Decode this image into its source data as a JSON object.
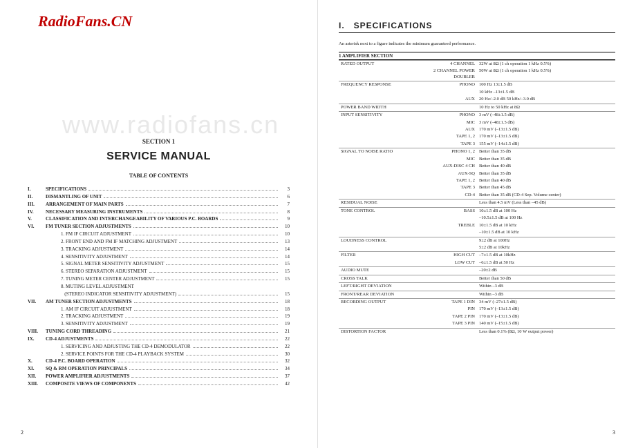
{
  "logo": "RadioFans.CN",
  "watermark": "www.radiofans.cn",
  "left": {
    "section_label": "SECTION 1",
    "title": "SERVICE MANUAL",
    "toc_title": "TABLE OF CONTENTS",
    "page_number": "2",
    "toc": [
      {
        "n": "I.",
        "t": "SPECIFICATIONS",
        "p": "3",
        "major": true
      },
      {
        "n": "II.",
        "t": "DISMANTLING OF UNIT",
        "p": "6",
        "major": true
      },
      {
        "n": "III.",
        "t": "ARRANGEMENT OF MAIN PARTS",
        "p": "7",
        "major": true
      },
      {
        "n": "IV.",
        "t": "NECESSARY MEASURING INSTRUMENTS",
        "p": "8",
        "major": true
      },
      {
        "n": "V.",
        "t": "CLASSIFICATION AND INTERCHANGEABILITY OF VARIOUS P.C. BOARDS",
        "p": "9",
        "major": true
      },
      {
        "n": "VI.",
        "t": "FM TUNER SECTION ADJUSTMENTS",
        "p": "10",
        "major": true
      },
      {
        "n": "",
        "t": "1. FM IF CIRCUIT ADJUSTMENT",
        "p": "10",
        "sub": true
      },
      {
        "n": "",
        "t": "2. FRONT END AND FM IF MATCHING ADJUSTMENT",
        "p": "13",
        "sub": true
      },
      {
        "n": "",
        "t": "3. TRACKING ADJUSTMENT",
        "p": "14",
        "sub": true
      },
      {
        "n": "",
        "t": "4. SENSITIVITY ADJUSTMENT",
        "p": "14",
        "sub": true
      },
      {
        "n": "",
        "t": "5. SIGNAL METER SENSITIVITY ADJUSTMENT",
        "p": "15",
        "sub": true
      },
      {
        "n": "",
        "t": "6. STEREO SEPARATION ADJUSTMENT",
        "p": "15",
        "sub": true
      },
      {
        "n": "",
        "t": "7. TUNING METER CENTER ADJUSTMENT",
        "p": "15",
        "sub": true
      },
      {
        "n": "",
        "t": "8. MUTING LEVEL ADJUSTMENT",
        "p": "",
        "sub": true,
        "nodots": true
      },
      {
        "n": "",
        "t": "   (STEREO INDICATOR SENSITIVITY ADJUSTMENT)",
        "p": "15",
        "sub": true
      },
      {
        "n": "VII.",
        "t": "AM TUNER SECTION ADJUSTMENTS",
        "p": "18",
        "major": true
      },
      {
        "n": "",
        "t": "1. AM IF CIRCUIT ADJUSTMENT",
        "p": "18",
        "sub": true
      },
      {
        "n": "",
        "t": "2. TRACKING ADJUSTMENT",
        "p": "19",
        "sub": true
      },
      {
        "n": "",
        "t": "3. SENSITIVITY ADJUSTMENT",
        "p": "19",
        "sub": true
      },
      {
        "n": "VIII.",
        "t": "TUNING CORD THREADING",
        "p": "21",
        "major": true
      },
      {
        "n": "IX.",
        "t": "CD-4 ADJUSTMENTS",
        "p": "22",
        "major": true
      },
      {
        "n": "",
        "t": "1. SERVICING AND ADJUSTING THE CD-4 DEMODULATOR",
        "p": "22",
        "sub": true
      },
      {
        "n": "",
        "t": "2. SERVICE POINTS FOR THE CD-4 PLAYBACK SYSTEM",
        "p": "30",
        "sub": true
      },
      {
        "n": "X.",
        "t": "CD-4 P.C. BOARD OPERATION",
        "p": "32",
        "major": true
      },
      {
        "n": "XI.",
        "t": "SQ & RM OPERATION PRINCIPALS",
        "p": "34",
        "major": true
      },
      {
        "n": "XII.",
        "t": "POWER AMPLIFIER ADJUSTMENTS",
        "p": "37",
        "major": true
      },
      {
        "n": "XIII.",
        "t": "COMPOSITE VIEWS OF COMPONENTS",
        "p": "42",
        "major": true
      }
    ]
  },
  "right": {
    "heading": "I. SPECIFICATIONS",
    "note": "An asterisk next to a figure indicates the minimum guaranteed performance.",
    "section_title": "1 AMPLIFIER SECTION",
    "page_number": "3",
    "rows": [
      {
        "c1": "RATED OUTPUT",
        "c2": "4 CHANNEL",
        "c3": "32W at 8Ω (1 ch operation 1 kHz 0.5%)"
      },
      {
        "c1": "",
        "c2": "2 CHANNEL POWER DOUBLER",
        "c3": "50W at 8Ω (1 ch operation 1 kHz 0.5%)",
        "nb": true
      },
      {
        "c1": "FREQUENCY RESPONSE",
        "c2": "PHONO",
        "c3": "100 Hz 13±1.5 dB"
      },
      {
        "c1": "",
        "c2": "",
        "c3": "10 kHz –13±1.5 dB",
        "nb": true
      },
      {
        "c1": "",
        "c2": "AUX",
        "c3": "20 Hz/–2.0 dB  50 kHz/–3.0 dB",
        "nb": true
      },
      {
        "c1": "POWER BAND WIDTH",
        "c2": "",
        "c3": "10 Hz to 50 kHz at 8Ω"
      },
      {
        "c1": "INPUT SENSITIVITY",
        "c2": "PHONO",
        "c3": "3 mV (–48±1.5 dB)"
      },
      {
        "c1": "",
        "c2": "MIC",
        "c3": "3 mV (–48±1.5 dB)",
        "nb": true
      },
      {
        "c1": "",
        "c2": "AUX",
        "c3": "170 mV (–13±1.5 dB)",
        "nb": true
      },
      {
        "c1": "",
        "c2": "TAPE 1, 2",
        "c3": "170 mV (–13±1.5 dB)",
        "nb": true
      },
      {
        "c1": "",
        "c2": "TAPE 3",
        "c3": "155 mV (–14±1.5 dB)",
        "nb": true
      },
      {
        "c1": "SIGNAL TO NOISE RATIO",
        "c2": "PHONO 1, 2",
        "c3": "Better than 35 dB"
      },
      {
        "c1": "",
        "c2": "MIC",
        "c3": "Better than 35 dB",
        "nb": true
      },
      {
        "c1": "",
        "c2": "AUX-DISC 4 CH",
        "c3": "Better than 40 dB",
        "nb": true
      },
      {
        "c1": "",
        "c2": "AUX-SQ",
        "c3": "Better than 35 dB",
        "nb": true
      },
      {
        "c1": "",
        "c2": "TAPE 1, 2",
        "c3": "Better than 40 dB",
        "nb": true
      },
      {
        "c1": "",
        "c2": "TAPE 3",
        "c3": "Better than 45 dB",
        "nb": true
      },
      {
        "c1": "",
        "c2": "CD-4",
        "c3": "Better than 35 dB (CD-4 Sep. Volume center)",
        "nb": true
      },
      {
        "c1": "RESIDUAL NOISE",
        "c2": "",
        "c3": "Less than 4.5 mV (Less than –45 dB)"
      },
      {
        "c1": "TONE CONTROL",
        "c2": "BASS",
        "c3": "10±1.5 dB at 100 Hz"
      },
      {
        "c1": "",
        "c2": "",
        "c3": "–10.5±1.5 dB at 100 Hz",
        "nb": true
      },
      {
        "c1": "",
        "c2": "TREBLE",
        "c3": "10±1.5 dB at 10 kHz",
        "nb": true
      },
      {
        "c1": "",
        "c2": "",
        "c3": "–10±1.5 dB at 10 kHz",
        "nb": true
      },
      {
        "c1": "LOUDNESS CONTROL",
        "c2": "",
        "c3": "9±2 dB at 100Hz"
      },
      {
        "c1": "",
        "c2": "",
        "c3": "5±2 dB at 10kHz",
        "nb": true
      },
      {
        "c1": "FILTER",
        "c2": "HIGH CUT",
        "c3": "–7±1.5 dB at 10kHz"
      },
      {
        "c1": "",
        "c2": "LOW CUT",
        "c3": "–6±1.5 dB at 50 Hz",
        "nb": true
      },
      {
        "c1": "AUDIO MUTE",
        "c2": "",
        "c3": "–20±2 dB"
      },
      {
        "c1": "CROSS TALK",
        "c2": "",
        "c3": "Better than 50 dB"
      },
      {
        "c1": "LEFT/RIGHT DEVIATION",
        "c2": "",
        "c3": "Within –3 dB"
      },
      {
        "c1": "FRONT/REAR DEVIATION",
        "c2": "",
        "c3": "Within –3 dB"
      },
      {
        "c1": "RECORDING OUTPUT",
        "c2": "TAPE 1 DIN",
        "c3": "34 mV (–27±1.5 dB)"
      },
      {
        "c1": "",
        "c2": "PIN",
        "c3": "170 mV (–13±1.5 dB)",
        "nb": true
      },
      {
        "c1": "",
        "c2": "TAPE 2 PIN",
        "c3": "170 mV (–13±1.5 dB)",
        "nb": true
      },
      {
        "c1": "",
        "c2": "TAPE 3 PIN",
        "c3": "140 mV (–15±1.5 dB)",
        "nb": true
      },
      {
        "c1": "DISTORTION FACTOR",
        "c2": "",
        "c3": "Less than 0.1% (8Ω, 10 W output power)"
      }
    ]
  }
}
